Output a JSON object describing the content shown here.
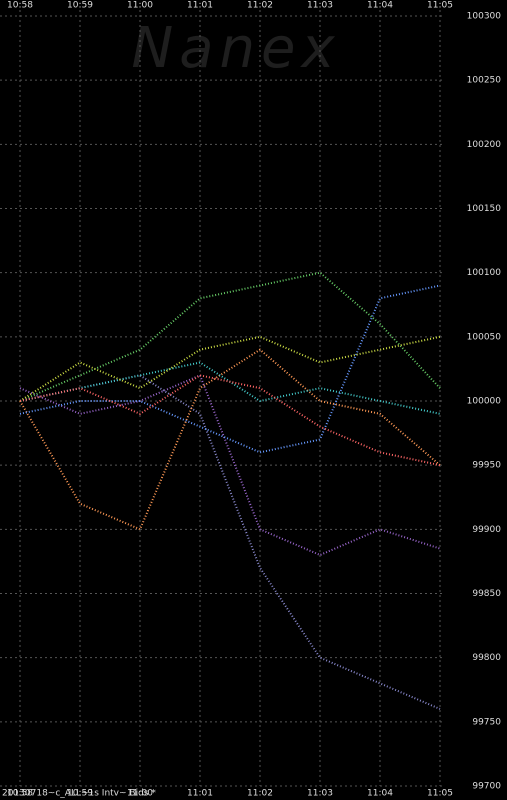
{
  "chart_data": {
    "type": "line",
    "watermark": "Nanex",
    "note": "20130718~c_ALL~1s Intv~ Bids *",
    "categories": [
      "10:58",
      "10:59",
      "11:00",
      "11:01",
      "11:02",
      "11:03",
      "11:04",
      "11:05"
    ],
    "ylim": [
      99700,
      100300
    ],
    "yticks": [
      99700,
      99750,
      99800,
      99850,
      99900,
      99950,
      100000,
      100050,
      100100,
      100150,
      100200,
      100250,
      100300
    ],
    "grid": true,
    "series": [
      {
        "color": "#9966cc",
        "values": [
          100010,
          99990,
          100000,
          100020,
          99900,
          99880,
          99900,
          99885
        ]
      },
      {
        "color": "#8888cc",
        "values": [
          100000,
          100010,
          100020,
          99990,
          99870,
          99800,
          99780,
          99760
        ]
      },
      {
        "color": "#ff9955",
        "values": [
          100000,
          99920,
          99900,
          100010,
          100040,
          100000,
          99990,
          99950
        ]
      },
      {
        "color": "#66cc66",
        "values": [
          100000,
          100020,
          100040,
          100080,
          100090,
          100100,
          100060,
          100010
        ]
      },
      {
        "color": "#44cccc",
        "values": [
          100000,
          100010,
          100020,
          100030,
          100000,
          100010,
          100000,
          99990
        ]
      },
      {
        "color": "#ccdd44",
        "values": [
          100000,
          100030,
          100010,
          100040,
          100050,
          100030,
          100040,
          100050
        ]
      },
      {
        "color": "#6699ff",
        "values": [
          99990,
          100000,
          100000,
          99980,
          99960,
          99970,
          100080,
          100090
        ]
      },
      {
        "color": "#ff6666",
        "values": [
          100000,
          100010,
          99990,
          100020,
          100010,
          99980,
          99960,
          99950
        ]
      }
    ]
  }
}
